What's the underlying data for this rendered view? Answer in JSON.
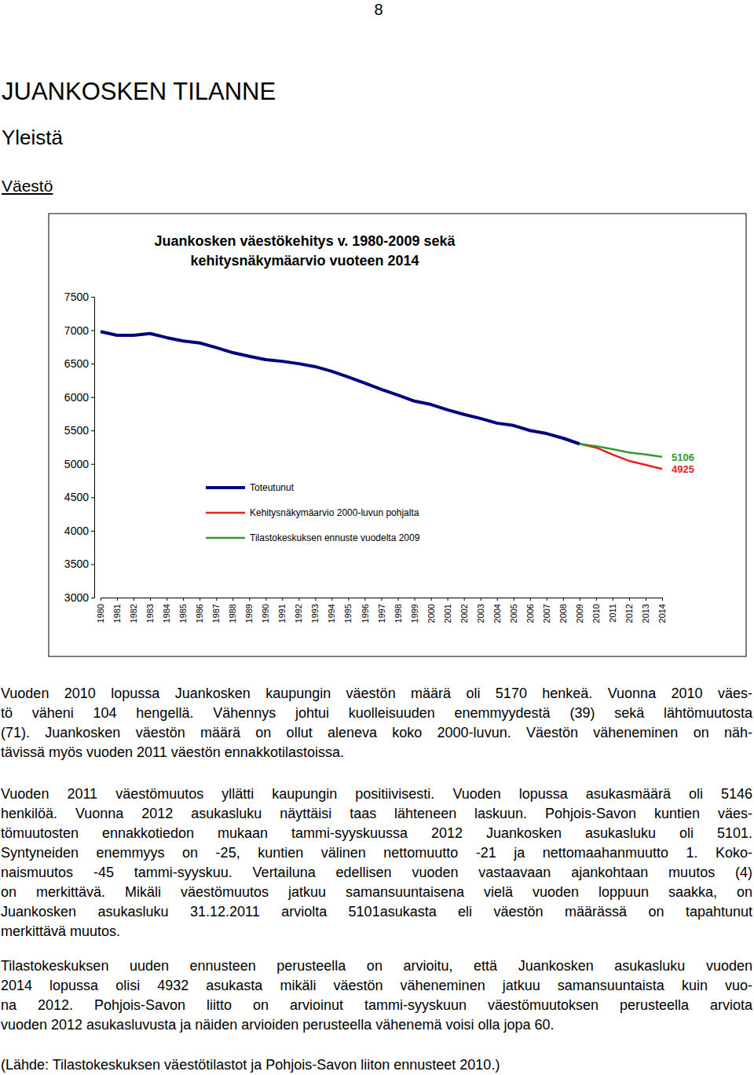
{
  "page": {
    "number": "8",
    "heading": "JUANKOSKEN TILANNE",
    "subheading": "Yleistä",
    "section": "Väestö"
  },
  "chart_data": {
    "type": "line",
    "title": "Juankosken väestökehitys v. 1980-2009 sekä kehitysnäkymäarvio vuoteen 2014",
    "categories": [
      "1980",
      "1981",
      "1982",
      "1983",
      "1984",
      "1985",
      "1986",
      "1987",
      "1988",
      "1989",
      "1990",
      "1991",
      "1992",
      "1993",
      "1994",
      "1995",
      "1996",
      "1997",
      "1998",
      "1999",
      "2000",
      "2001",
      "2002",
      "2003",
      "2004",
      "2005",
      "2006",
      "2007",
      "2008",
      "2009",
      "2010",
      "2011",
      "2012",
      "2013",
      "2014"
    ],
    "series": [
      {
        "name": "Toteutunut",
        "color": "#000080",
        "values": [
          6980,
          6925,
          6925,
          6950,
          6890,
          6840,
          6810,
          6740,
          6665,
          6610,
          6560,
          6535,
          6500,
          6455,
          6385,
          6300,
          6210,
          6115,
          6030,
          5940,
          5890,
          5810,
          5740,
          5680,
          5610,
          5575,
          5500,
          5455,
          5385,
          5300,
          null,
          null,
          null,
          null,
          null
        ]
      },
      {
        "name": "Kehitysnäkymäarvio 2000-luvun pohjalta",
        "color": "#e8201c",
        "values": [
          null,
          null,
          null,
          null,
          null,
          null,
          null,
          null,
          null,
          null,
          null,
          null,
          null,
          null,
          null,
          null,
          null,
          null,
          null,
          null,
          null,
          null,
          null,
          null,
          null,
          null,
          null,
          null,
          null,
          5300,
          5245,
          5140,
          5045,
          4985,
          4925
        ]
      },
      {
        "name": "Tilastokeskuksen ennuste vuodelta 2009",
        "color": "#339933",
        "values": [
          null,
          null,
          null,
          null,
          null,
          null,
          null,
          null,
          null,
          null,
          null,
          null,
          null,
          null,
          null,
          null,
          null,
          null,
          null,
          null,
          null,
          null,
          null,
          null,
          null,
          null,
          null,
          null,
          null,
          5300,
          5265,
          5220,
          5170,
          5140,
          5106
        ]
      }
    ],
    "ylim": [
      3000,
      7500
    ],
    "yticks": [
      3000,
      3500,
      4000,
      4500,
      5000,
      5500,
      6000,
      6500,
      7000,
      7500
    ],
    "grid": false,
    "legend": "lower left",
    "annotations": [
      {
        "text": "5106",
        "y": 5106,
        "color": "#339933"
      },
      {
        "text": "4925",
        "y": 4925,
        "color": "#e8201c"
      }
    ]
  },
  "paragraphs": [
    [
      "Vuoden 2010 lopussa Juankosken kaupungin väestön määrä oli 5170 henkeä. Vuonna 2010 väes-",
      "tö väheni 104 hengellä. Vähennys johtui kuolleisuuden enemmyydestä (39) sekä lähtömuutosta",
      "(71). Juankosken väestön määrä on ollut aleneva koko 2000-luvun. Väestön väheneminen on näh-",
      "tävissä myös vuoden 2011 väestön ennakkotilastoissa."
    ],
    [
      "Vuoden 2011 väestömuutos yllätti kaupungin positiivisesti. Vuoden lopussa asukasmäärä oli 5146",
      "henkilöä. Vuonna 2012 asukasluku näyttäisi taas lähteneen laskuun. Pohjois-Savon kuntien väes-",
      "tömuutosten ennakkotiedon mukaan tammi-syyskuussa 2012 Juankosken asukasluku oli 5101.",
      "Syntyneiden enemmyys on -25, kuntien välinen nettomuutto -21 ja nettomaahanmuutto 1. Koko-",
      "naismuutos -45 tammi-syyskuu. Vertailuna edellisen vuoden vastaavaan ajankohtaan muutos (4)",
      "on merkittävä. Mikäli väestömuutos jatkuu samansuuntaisena vielä vuoden loppuun saakka, on",
      "Juankosken asukasluku 31.12.2011 arviolta 5101asukasta eli väestön määrässä on tapahtunut",
      "merkittävä muutos."
    ],
    [
      "Tilastokeskuksen uuden ennusteen perusteella on arvioitu, että Juankosken asukasluku vuoden",
      "2014 lopussa olisi 4932 asukasta mikäli väestön väheneminen jatkuu samansuuntaista kuin vuo-",
      "na 2012. Pohjois-Savon liitto on arvioinut tammi-syyskuun väestömuutoksen perusteella arviota",
      "vuoden 2012 asukasluvusta ja näiden arvioiden perusteella vähenemä voisi olla jopa 60."
    ],
    [
      "(Lähde: Tilastokeskuksen väestötilastot ja Pohjois-Savon liiton ennusteet 2010.)"
    ]
  ]
}
